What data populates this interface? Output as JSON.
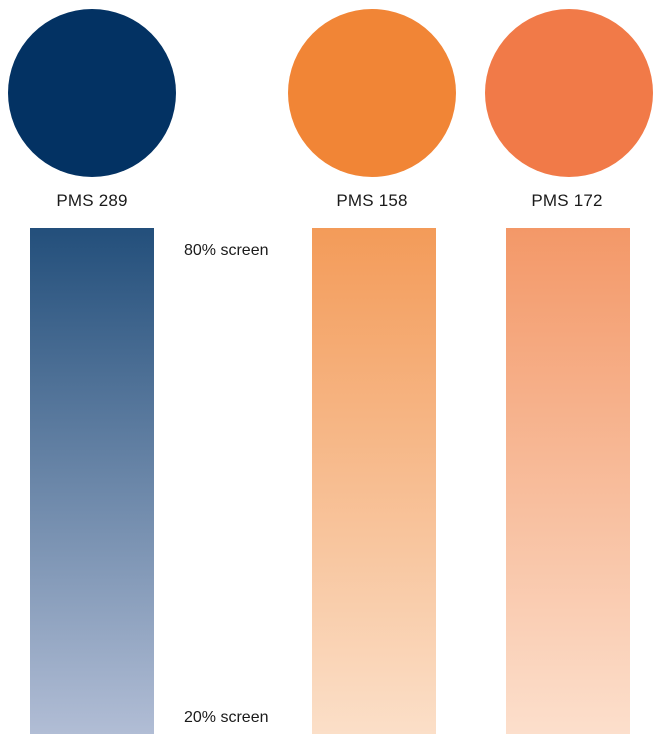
{
  "swatches": [
    {
      "label": "PMS 289",
      "color": "#033263",
      "tint_80": "#234f7b",
      "tint_20": "#b1bdd5"
    },
    {
      "label": "PMS 158",
      "color": "#f18536",
      "tint_80": "#f39b59",
      "tint_20": "#fbdfc8"
    },
    {
      "label": "PMS 172",
      "color": "#f17a48",
      "tint_80": "#f39868",
      "tint_20": "#fcdfcc"
    }
  ],
  "screen_labels": {
    "top": "80% screen",
    "bottom": "20% screen"
  }
}
